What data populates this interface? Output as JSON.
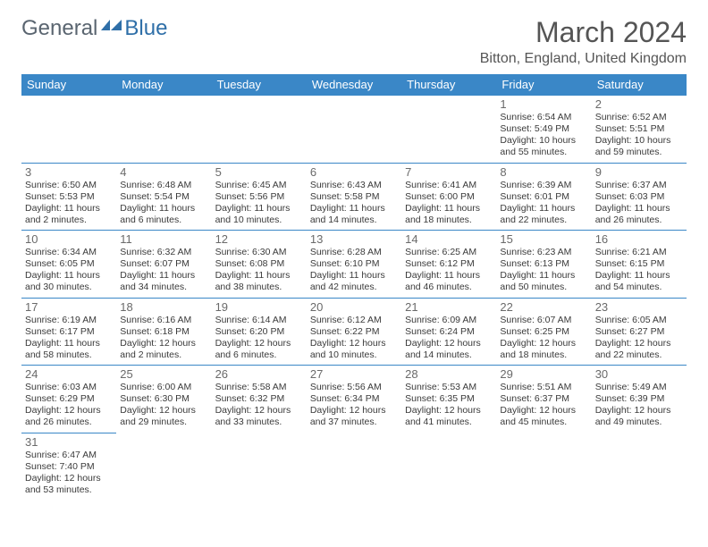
{
  "logo": {
    "text_a": "General",
    "text_b": "Blue"
  },
  "title": "March 2024",
  "location": "Bitton, England, United Kingdom",
  "colors": {
    "header_bg": "#3a87c7",
    "header_text": "#ffffff",
    "cell_border": "#3a87c7",
    "daynum_color": "#6a6a6a",
    "body_text": "#3a3a3a",
    "title_color": "#555555",
    "logo_gray": "#5a6570",
    "logo_blue": "#2f6fa8",
    "page_bg": "#ffffff"
  },
  "fonts": {
    "title_size": 32,
    "location_size": 16,
    "header_size": 13,
    "daynum_size": 13,
    "info_size": 10.5
  },
  "weekdays": [
    "Sunday",
    "Monday",
    "Tuesday",
    "Wednesday",
    "Thursday",
    "Friday",
    "Saturday"
  ],
  "first_weekday_index": 5,
  "days": [
    {
      "n": 1,
      "sunrise": "6:54 AM",
      "sunset": "5:49 PM",
      "daylight": "10 hours and 55 minutes."
    },
    {
      "n": 2,
      "sunrise": "6:52 AM",
      "sunset": "5:51 PM",
      "daylight": "10 hours and 59 minutes."
    },
    {
      "n": 3,
      "sunrise": "6:50 AM",
      "sunset": "5:53 PM",
      "daylight": "11 hours and 2 minutes."
    },
    {
      "n": 4,
      "sunrise": "6:48 AM",
      "sunset": "5:54 PM",
      "daylight": "11 hours and 6 minutes."
    },
    {
      "n": 5,
      "sunrise": "6:45 AM",
      "sunset": "5:56 PM",
      "daylight": "11 hours and 10 minutes."
    },
    {
      "n": 6,
      "sunrise": "6:43 AM",
      "sunset": "5:58 PM",
      "daylight": "11 hours and 14 minutes."
    },
    {
      "n": 7,
      "sunrise": "6:41 AM",
      "sunset": "6:00 PM",
      "daylight": "11 hours and 18 minutes."
    },
    {
      "n": 8,
      "sunrise": "6:39 AM",
      "sunset": "6:01 PM",
      "daylight": "11 hours and 22 minutes."
    },
    {
      "n": 9,
      "sunrise": "6:37 AM",
      "sunset": "6:03 PM",
      "daylight": "11 hours and 26 minutes."
    },
    {
      "n": 10,
      "sunrise": "6:34 AM",
      "sunset": "6:05 PM",
      "daylight": "11 hours and 30 minutes."
    },
    {
      "n": 11,
      "sunrise": "6:32 AM",
      "sunset": "6:07 PM",
      "daylight": "11 hours and 34 minutes."
    },
    {
      "n": 12,
      "sunrise": "6:30 AM",
      "sunset": "6:08 PM",
      "daylight": "11 hours and 38 minutes."
    },
    {
      "n": 13,
      "sunrise": "6:28 AM",
      "sunset": "6:10 PM",
      "daylight": "11 hours and 42 minutes."
    },
    {
      "n": 14,
      "sunrise": "6:25 AM",
      "sunset": "6:12 PM",
      "daylight": "11 hours and 46 minutes."
    },
    {
      "n": 15,
      "sunrise": "6:23 AM",
      "sunset": "6:13 PM",
      "daylight": "11 hours and 50 minutes."
    },
    {
      "n": 16,
      "sunrise": "6:21 AM",
      "sunset": "6:15 PM",
      "daylight": "11 hours and 54 minutes."
    },
    {
      "n": 17,
      "sunrise": "6:19 AM",
      "sunset": "6:17 PM",
      "daylight": "11 hours and 58 minutes."
    },
    {
      "n": 18,
      "sunrise": "6:16 AM",
      "sunset": "6:18 PM",
      "daylight": "12 hours and 2 minutes."
    },
    {
      "n": 19,
      "sunrise": "6:14 AM",
      "sunset": "6:20 PM",
      "daylight": "12 hours and 6 minutes."
    },
    {
      "n": 20,
      "sunrise": "6:12 AM",
      "sunset": "6:22 PM",
      "daylight": "12 hours and 10 minutes."
    },
    {
      "n": 21,
      "sunrise": "6:09 AM",
      "sunset": "6:24 PM",
      "daylight": "12 hours and 14 minutes."
    },
    {
      "n": 22,
      "sunrise": "6:07 AM",
      "sunset": "6:25 PM",
      "daylight": "12 hours and 18 minutes."
    },
    {
      "n": 23,
      "sunrise": "6:05 AM",
      "sunset": "6:27 PM",
      "daylight": "12 hours and 22 minutes."
    },
    {
      "n": 24,
      "sunrise": "6:03 AM",
      "sunset": "6:29 PM",
      "daylight": "12 hours and 26 minutes."
    },
    {
      "n": 25,
      "sunrise": "6:00 AM",
      "sunset": "6:30 PM",
      "daylight": "12 hours and 29 minutes."
    },
    {
      "n": 26,
      "sunrise": "5:58 AM",
      "sunset": "6:32 PM",
      "daylight": "12 hours and 33 minutes."
    },
    {
      "n": 27,
      "sunrise": "5:56 AM",
      "sunset": "6:34 PM",
      "daylight": "12 hours and 37 minutes."
    },
    {
      "n": 28,
      "sunrise": "5:53 AM",
      "sunset": "6:35 PM",
      "daylight": "12 hours and 41 minutes."
    },
    {
      "n": 29,
      "sunrise": "5:51 AM",
      "sunset": "6:37 PM",
      "daylight": "12 hours and 45 minutes."
    },
    {
      "n": 30,
      "sunrise": "5:49 AM",
      "sunset": "6:39 PM",
      "daylight": "12 hours and 49 minutes."
    },
    {
      "n": 31,
      "sunrise": "6:47 AM",
      "sunset": "7:40 PM",
      "daylight": "12 hours and 53 minutes."
    }
  ],
  "labels": {
    "sunrise": "Sunrise:",
    "sunset": "Sunset:",
    "daylight": "Daylight:"
  }
}
